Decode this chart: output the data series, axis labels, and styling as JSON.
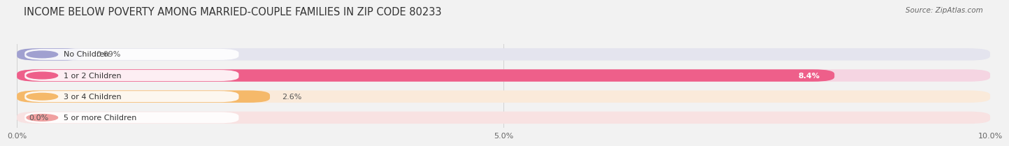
{
  "title": "INCOME BELOW POVERTY AMONG MARRIED-COUPLE FAMILIES IN ZIP CODE 80233",
  "source": "Source: ZipAtlas.com",
  "categories": [
    "No Children",
    "1 or 2 Children",
    "3 or 4 Children",
    "5 or more Children"
  ],
  "values": [
    0.69,
    8.4,
    2.6,
    0.0
  ],
  "bar_colors": [
    "#a0a0d0",
    "#ee5f8a",
    "#f5b96a",
    "#f0a0a0"
  ],
  "bg_colors": [
    "#e4e4ee",
    "#f5d5e2",
    "#faeada",
    "#f8e2e2"
  ],
  "xlim": [
    0,
    10.0
  ],
  "xtick_labels": [
    "0.0%",
    "5.0%",
    "10.0%"
  ],
  "xtick_values": [
    0.0,
    5.0,
    10.0
  ],
  "value_labels": [
    "0.69%",
    "8.4%",
    "2.6%",
    "0.0%"
  ],
  "value_label_inside": [
    false,
    true,
    false,
    false
  ],
  "title_fontsize": 10.5,
  "bar_height": 0.58,
  "background_color": "#f2f2f2"
}
